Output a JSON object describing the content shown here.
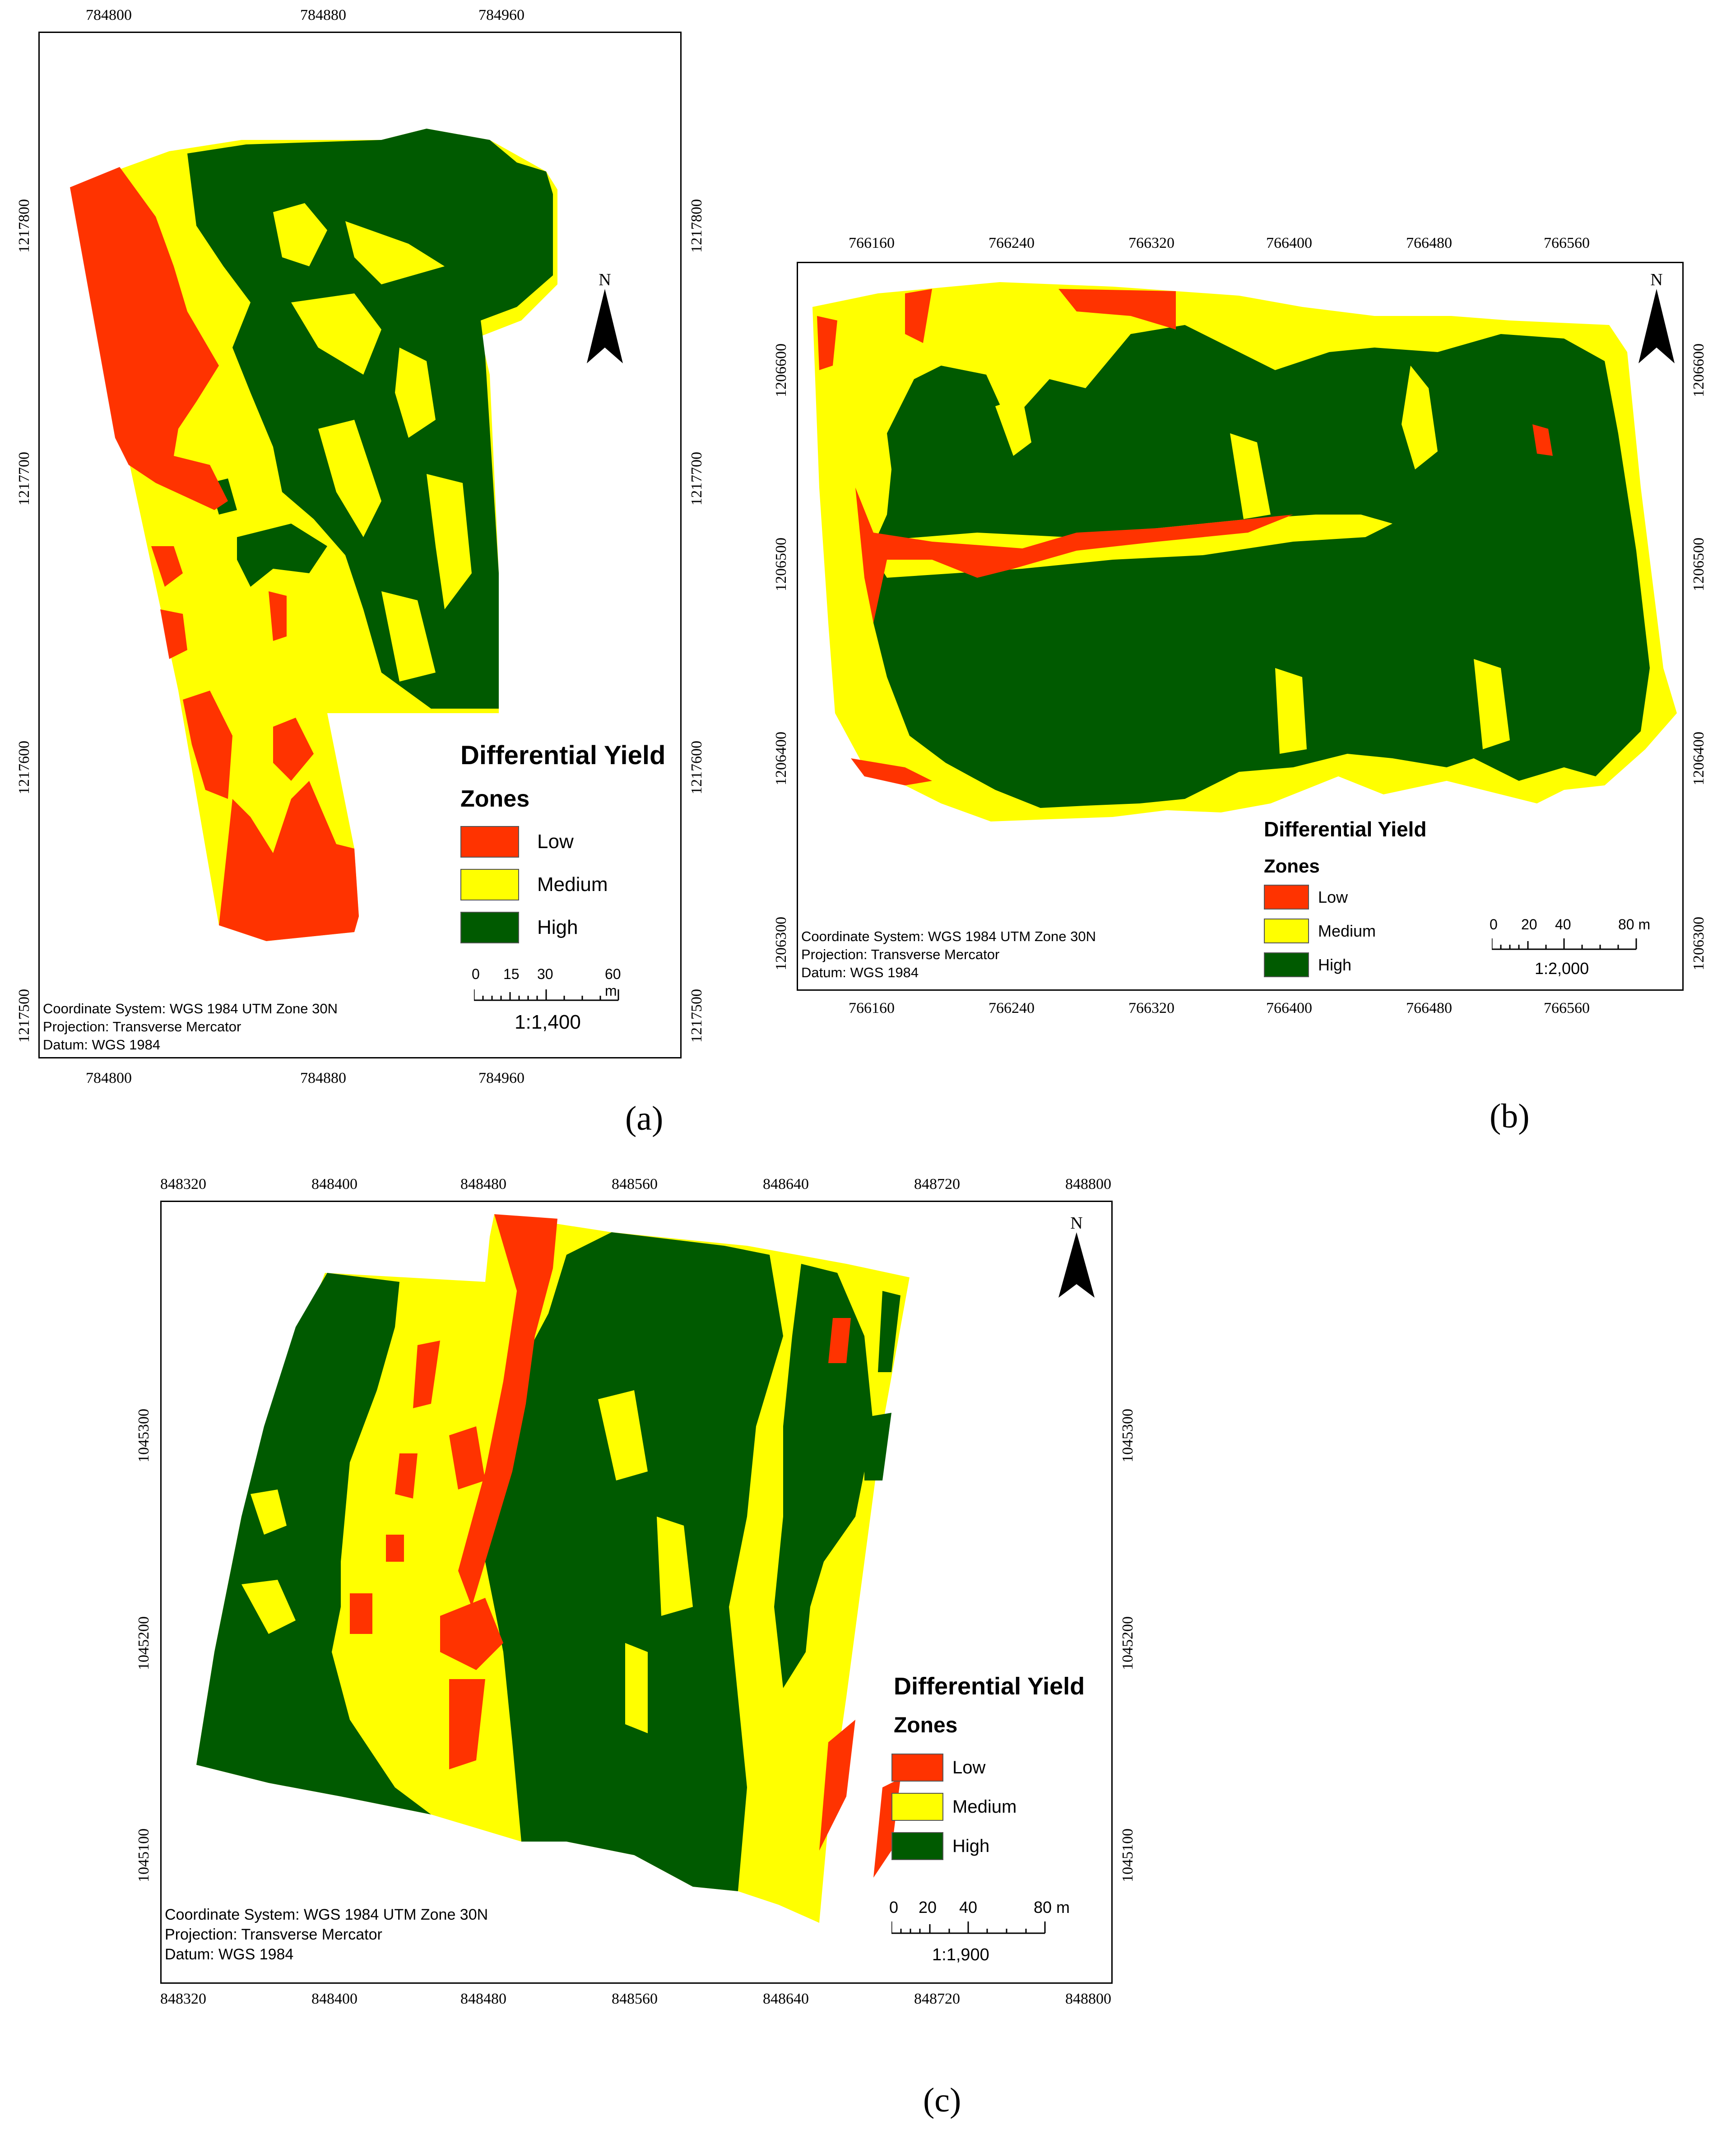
{
  "colors": {
    "low": "#ff3300",
    "medium": "#ffff00",
    "high": "#005a00",
    "frame": "#000000"
  },
  "panels": [
    {
      "caption": "(a)",
      "north_label": "N",
      "north_icon": "north-arrow-icon",
      "x_ticks": [
        "784800",
        "784880",
        "784960"
      ],
      "y_ticks": [
        "1217800",
        "1217700",
        "1217600",
        "1217500"
      ],
      "legend": {
        "title_line1": "Differential Yield",
        "title_line2": "Zones",
        "items": [
          "Low",
          "Medium",
          "High"
        ]
      },
      "scale_labels": [
        "0",
        "15",
        "30",
        "60 m"
      ],
      "ratio": "1:1,400",
      "info": [
        "Coordinate System: WGS 1984 UTM Zone 30N",
        "Projection: Transverse Mercator",
        "Datum: WGS 1984"
      ]
    },
    {
      "caption": "(b)",
      "north_label": "N",
      "north_icon": "north-arrow-icon",
      "x_ticks": [
        "766160",
        "766240",
        "766320",
        "766400",
        "766480",
        "766560"
      ],
      "y_ticks": [
        "1206600",
        "1206500",
        "1206400",
        "1206300"
      ],
      "legend": {
        "title_line1": "Differential Yield",
        "title_line2": "Zones",
        "items": [
          "Low",
          "Medium",
          "High"
        ]
      },
      "scale_labels": [
        "0",
        "20",
        "40",
        "80 m"
      ],
      "ratio": "1:2,000",
      "info": [
        "Coordinate System: WGS 1984 UTM Zone 30N",
        "Projection: Transverse Mercator",
        "Datum: WGS 1984"
      ]
    },
    {
      "caption": "(c)",
      "north_label": "N",
      "north_icon": "north-arrow-icon",
      "x_ticks": [
        "848320",
        "848400",
        "848480",
        "848560",
        "848640",
        "848720",
        "848800"
      ],
      "y_ticks": [
        "1045300",
        "1045200",
        "1045100"
      ],
      "legend": {
        "title_line1": "Differential Yield",
        "title_line2": "Zones",
        "items": [
          "Low",
          "Medium",
          "High"
        ]
      },
      "scale_labels": [
        "0",
        "20",
        "40",
        "80 m"
      ],
      "ratio": "1:1,900",
      "info": [
        "Coordinate System: WGS 1984 UTM Zone 30N",
        "Projection: Transverse Mercator",
        "Datum: WGS 1984"
      ]
    }
  ]
}
